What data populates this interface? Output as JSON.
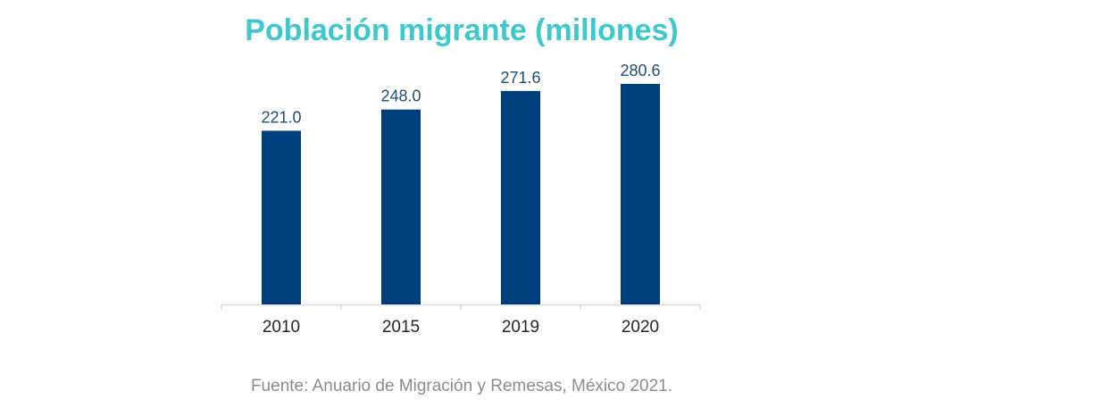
{
  "chart_data": {
    "type": "bar",
    "title": "Población migrante (millones)",
    "categories": [
      "2010",
      "2015",
      "2019",
      "2020"
    ],
    "values": [
      221.0,
      248.0,
      271.6,
      280.6
    ],
    "value_labels": [
      "221.0",
      "248.0",
      "271.6",
      "280.6"
    ],
    "xlabel": "",
    "ylabel": "",
    "ylim": [
      0,
      280.6
    ],
    "grid": false,
    "legend": "none",
    "colors": {
      "bar": "#003f7d",
      "title": "#3cc8cc",
      "value_label": "#1f4e79",
      "tick_label": "#262626",
      "axis": "#d9d9d9",
      "source": "#8c8c8c"
    }
  },
  "source": "Fuente: Anuario de Migración y Remesas, México 2021."
}
